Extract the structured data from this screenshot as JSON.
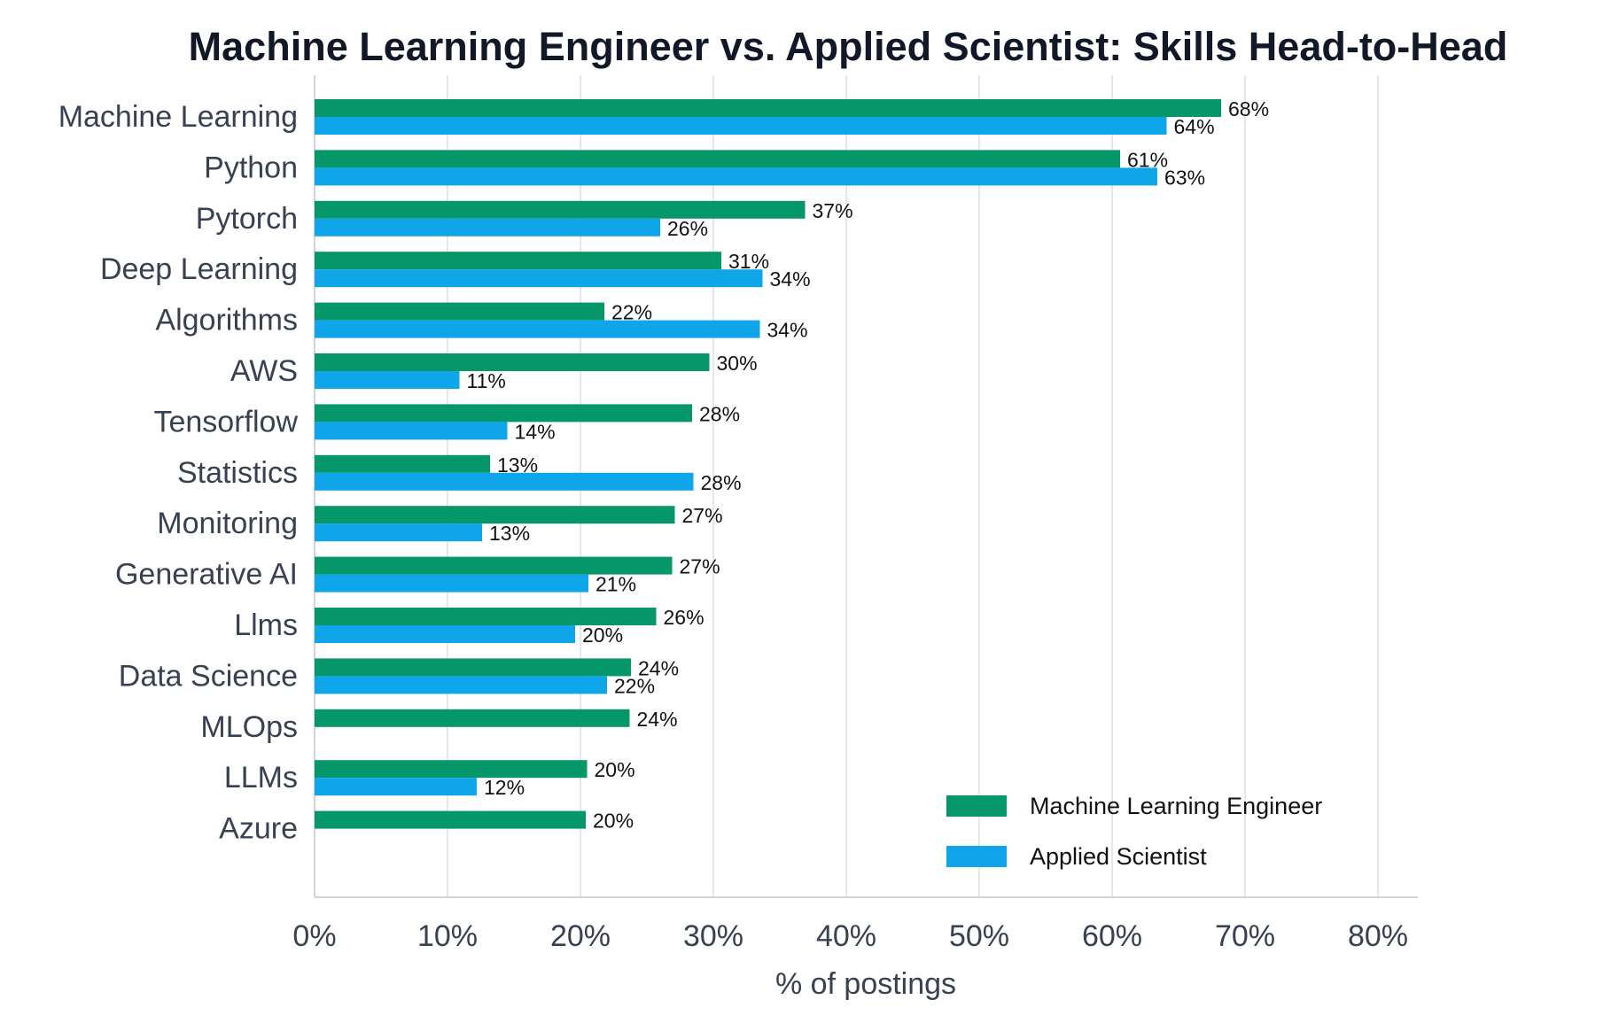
{
  "chart_data": {
    "type": "bar",
    "orientation": "horizontal",
    "title": "Machine Learning Engineer vs. Applied Scientist: Skills Head-to-Head",
    "xlabel": "% of postings",
    "ylabel": "",
    "xlim": [
      0,
      83
    ],
    "xticks": [
      0,
      10,
      20,
      30,
      40,
      50,
      60,
      70,
      80
    ],
    "xtick_labels": [
      "0%",
      "10%",
      "20%",
      "30%",
      "40%",
      "50%",
      "60%",
      "70%",
      "80%"
    ],
    "grid": "vertical",
    "legend_position": "bottom-right",
    "categories": [
      "Machine Learning",
      "Python",
      "Pytorch",
      "Deep Learning",
      "Algorithms",
      "AWS",
      "Tensorflow",
      "Statistics",
      "Monitoring",
      "Generative AI",
      "Llms",
      "Data Science",
      "MLOps",
      "LLMs",
      "Azure"
    ],
    "series": [
      {
        "name": "Machine Learning Engineer",
        "color": "#059669",
        "values": [
          68.2,
          60.6,
          36.9,
          30.6,
          21.8,
          29.7,
          28.4,
          13.2,
          27.1,
          26.9,
          25.7,
          23.8,
          23.7,
          20.5,
          20.4
        ],
        "labels": [
          "68%",
          "61%",
          "37%",
          "31%",
          "22%",
          "30%",
          "28%",
          "13%",
          "27%",
          "27%",
          "26%",
          "24%",
          "24%",
          "20%",
          "20%"
        ]
      },
      {
        "name": "Applied Scientist",
        "color": "#0EA5E9",
        "values": [
          64.1,
          63.4,
          26.0,
          33.7,
          33.5,
          10.9,
          14.5,
          28.5,
          12.6,
          20.6,
          19.6,
          22.0,
          null,
          12.2,
          null
        ],
        "labels": [
          "64%",
          "63%",
          "26%",
          "34%",
          "34%",
          "11%",
          "14%",
          "28%",
          "13%",
          "21%",
          "20%",
          "22%",
          null,
          "12%",
          null
        ]
      }
    ]
  }
}
